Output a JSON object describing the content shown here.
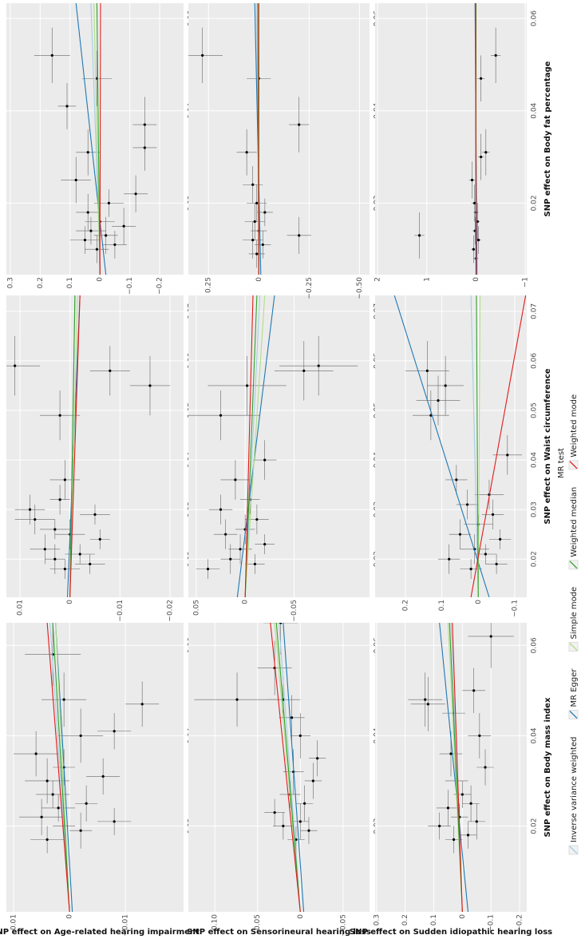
{
  "legend": {
    "title": "MR test",
    "items": [
      {
        "name": "Inverse variance weighted",
        "color": "#a6cee3"
      },
      {
        "name": "MR Egger",
        "color": "#1f78b4"
      },
      {
        "name": "Simple mode",
        "color": "#b2df8a"
      },
      {
        "name": "Weighted median",
        "color": "#33a02c"
      },
      {
        "name": "Weighted mode",
        "color": "#e31a1c"
      }
    ]
  },
  "chart_data": [
    {
      "type": "scatter",
      "y_label": "SNP effect on Age-related hearing impairment",
      "xlim": [
        0.001,
        0.065
      ],
      "xticks": [
        0.02,
        0.04,
        0.06
      ],
      "ylim": [
        -0.0204,
        0.0113
      ],
      "yticks": [
        {
          "value": -0.01,
          "label": "−0.01"
        },
        0,
        0.01
      ],
      "points": {
        "x": [
          0.017,
          0.019,
          0.02,
          0.021,
          0.022,
          0.024,
          0.025,
          0.027,
          0.03,
          0.031,
          0.033,
          0.036,
          0.04,
          0.041,
          0.047,
          0.048,
          0.058
        ],
        "y": [
          0.004,
          -0.002,
          0.001,
          -0.008,
          0.005,
          0.002,
          -0.003,
          0.003,
          0.004,
          -0.006,
          0.001,
          0.006,
          -0.002,
          -0.008,
          -0.013,
          0.001,
          0.003
        ],
        "xerr": [
          0.003,
          0.004,
          0.003,
          0.003,
          0.004,
          0.003,
          0.004,
          0.003,
          0.005,
          0.004,
          0.004,
          0.005,
          0.006,
          0.004,
          0.005,
          0.006,
          0.007
        ],
        "yerr": [
          0.003,
          0.002,
          0.002,
          0.003,
          0.004,
          0.003,
          0.002,
          0.003,
          0.004,
          0.003,
          0.002,
          0.004,
          0.004,
          0.003,
          0.003,
          0.004,
          0.005
        ]
      },
      "lines": [
        {
          "values": [
            0,
            0.0035
          ]
        },
        {
          "values": [
            -0.0005,
            0.0025
          ]
        },
        {
          "values": [
            0,
            0.0025
          ]
        },
        {
          "values": [
            0,
            0.003
          ]
        },
        {
          "values": [
            0,
            0.004
          ]
        }
      ]
    },
    {
      "type": "scatter",
      "xlim": [
        0.0123,
        0.0732
      ],
      "xticks": [
        0.02,
        0.03,
        0.04,
        0.05,
        0.06,
        0.07
      ],
      "ylim": [
        -0.0227,
        0.0127
      ],
      "yticks": [
        {
          "value": -0.02,
          "label": "−0.02"
        },
        {
          "value": -0.01,
          "label": "−0.01"
        },
        0,
        0.01
      ],
      "points": {
        "x": [
          0.018,
          0.019,
          0.02,
          0.021,
          0.022,
          0.024,
          0.025,
          0.026,
          0.028,
          0.029,
          0.03,
          0.032,
          0.036,
          0.049,
          0.055,
          0.058,
          0.059
        ],
        "y": [
          0.001,
          -0.004,
          0.003,
          -0.002,
          0.005,
          -0.006,
          0,
          0.003,
          0.007,
          -0.005,
          0.008,
          0.002,
          0.001,
          0.002,
          -0.016,
          -0.008,
          0.011
        ],
        "xerr": [
          0.002,
          0.002,
          0.003,
          0.002,
          0.003,
          0.002,
          0.003,
          0.002,
          0.003,
          0.002,
          0.003,
          0.003,
          0.004,
          0.005,
          0.006,
          0.005,
          0.006
        ],
        "yerr": [
          0.003,
          0.003,
          0.002,
          0.003,
          0.003,
          0.002,
          0.003,
          0.003,
          0.004,
          0.003,
          0.003,
          0.002,
          0.003,
          0.004,
          0.004,
          0.004,
          0.005
        ]
      },
      "lines": [
        {
          "values": [
            0,
            -0.001
          ]
        },
        {
          "values": [
            0.0005,
            -0.002
          ]
        },
        {
          "values": [
            0,
            -0.0015
          ]
        },
        {
          "values": [
            0,
            -0.001
          ]
        },
        {
          "values": [
            0,
            -0.002
          ]
        }
      ]
    },
    {
      "type": "scatter",
      "xlim": [
        0.0045,
        0.0633
      ],
      "xticks": [
        0.02,
        0.04,
        0.06
      ],
      "ylim": [
        -0.28,
        0.313
      ],
      "yticks": [
        {
          "value": -0.2,
          "label": "−0.2"
        },
        {
          "value": -0.1,
          "label": "−0.1"
        },
        0,
        0.1,
        0.2,
        0.3
      ],
      "points": {
        "x": [
          0.01,
          0.011,
          0.012,
          0.013,
          0.014,
          0.015,
          0.016,
          0.018,
          0.02,
          0.022,
          0.025,
          0.031,
          0.032,
          0.037,
          0.041,
          0.047,
          0.052
        ],
        "y": [
          0.01,
          -0.05,
          0.05,
          -0.02,
          0.03,
          -0.08,
          0,
          0.04,
          -0.03,
          -0.12,
          0.08,
          0.04,
          -0.15,
          -0.15,
          0.11,
          0.01,
          0.16
        ],
        "xerr": [
          0.003,
          0.003,
          0.003,
          0.004,
          0.003,
          0.004,
          0.003,
          0.004,
          0.003,
          0.004,
          0.005,
          0.005,
          0.005,
          0.006,
          0.005,
          0.006,
          0.006
        ],
        "yerr": [
          0.04,
          0.04,
          0.05,
          0.04,
          0.05,
          0.04,
          0.05,
          0.04,
          0.05,
          0.04,
          0.05,
          0.04,
          0.04,
          0.04,
          0.03,
          0.05,
          0.06
        ]
      },
      "lines": [
        {
          "values": [
            -0.002,
            0.03
          ]
        },
        {
          "values": [
            -0.02,
            0.08
          ]
        },
        {
          "values": [
            0,
            0.02
          ]
        },
        {
          "values": [
            0,
            0.01
          ]
        },
        {
          "values": [
            0,
            -0.002
          ]
        }
      ]
    },
    {
      "type": "scatter",
      "y_label": "SNP effect on Sensorineural hearing loss",
      "xlim": [
        0.001,
        0.065
      ],
      "xticks": [
        0.02,
        0.04,
        0.06
      ],
      "ylim": [
        -0.081,
        0.131
      ],
      "yticks": [
        {
          "value": -0.05,
          "label": "−0.05"
        },
        0,
        0.05,
        {
          "value": 0.1,
          "label": "0.10"
        }
      ],
      "points": {
        "x": [
          0.017,
          0.019,
          0.02,
          0.021,
          0.023,
          0.025,
          0.027,
          0.03,
          0.032,
          0.035,
          0.04,
          0.044,
          0.048,
          0.048,
          0.055,
          0.065
        ],
        "y": [
          0.005,
          -0.01,
          0.02,
          0,
          0.03,
          -0.005,
          0.012,
          -0.015,
          0.008,
          -0.02,
          0,
          0.01,
          0.074,
          0.02,
          0.03,
          0.023
        ],
        "xerr": [
          0.003,
          0.003,
          0.003,
          0.004,
          0.003,
          0.004,
          0.003,
          0.004,
          0.005,
          0.004,
          0.005,
          0.005,
          0.006,
          0.005,
          0.006,
          0.007
        ],
        "yerr": [
          0.01,
          0.01,
          0.012,
          0.01,
          0.012,
          0.01,
          0.012,
          0.01,
          0.012,
          0.01,
          0.012,
          0.015,
          0.05,
          0.02,
          0.02,
          0.02
        ]
      },
      "lines": [
        {
          "values": [
            0,
            0.025
          ]
        },
        {
          "values": [
            -0.004,
            0.02
          ]
        },
        {
          "values": [
            0,
            0.03
          ]
        },
        {
          "values": [
            0,
            0.028
          ]
        },
        {
          "values": [
            0,
            0.035
          ]
        }
      ]
    },
    {
      "type": "scatter",
      "xlim": [
        0.0123,
        0.0732
      ],
      "xticks": [
        0.02,
        0.03,
        0.04,
        0.05,
        0.06,
        0.07
      ],
      "ylim": [
        -0.127,
        0.058
      ],
      "yticks": [
        {
          "value": -0.05,
          "label": "−0.05"
        },
        0,
        0.05
      ],
      "points": {
        "x": [
          0.018,
          0.019,
          0.02,
          0.022,
          0.023,
          0.025,
          0.026,
          0.028,
          0.03,
          0.032,
          0.036,
          0.04,
          0.049,
          0.055,
          0.058,
          0.059
        ],
        "y": [
          0.038,
          -0.01,
          0.015,
          0.005,
          -0.02,
          0.02,
          0,
          -0.012,
          0.025,
          -0.005,
          0.01,
          -0.02,
          0.025,
          -0.002,
          -0.06,
          -0.075
        ],
        "xerr": [
          0.002,
          0.002,
          0.003,
          0.003,
          0.002,
          0.003,
          0.003,
          0.003,
          0.003,
          0.003,
          0.004,
          0.004,
          0.005,
          0.006,
          0.006,
          0.006
        ],
        "yerr": [
          0.012,
          0.01,
          0.01,
          0.012,
          0.01,
          0.012,
          0.01,
          0.012,
          0.012,
          0.01,
          0.015,
          0.012,
          0.04,
          0.04,
          0.03,
          0.04
        ]
      },
      "lines": [
        {
          "values": [
            0,
            -0.015
          ]
        },
        {
          "values": [
            0.008,
            -0.03
          ]
        },
        {
          "values": [
            0,
            -0.02
          ]
        },
        {
          "values": [
            0,
            -0.012
          ]
        },
        {
          "values": [
            0,
            -0.008
          ]
        }
      ]
    },
    {
      "type": "scatter",
      "xlim": [
        0.0045,
        0.0633
      ],
      "xticks": [
        0.02,
        0.04,
        0.06
      ],
      "ylim": [
        -0.55,
        0.35
      ],
      "yticks": [
        {
          "value": -0.5,
          "label": "−0.50"
        },
        {
          "value": -0.25,
          "label": "−0.25"
        },
        0,
        0.25
      ],
      "points": {
        "x": [
          0.009,
          0.011,
          0.012,
          0.013,
          0.014,
          0.016,
          0.018,
          0.02,
          0.024,
          0.031,
          0.037,
          0.047,
          0.052
        ],
        "y": [
          0.01,
          -0.02,
          0.03,
          -0.2,
          0,
          0.02,
          -0.03,
          0.01,
          0.03,
          0.06,
          -0.2,
          0,
          0.28
        ],
        "xerr": [
          0.003,
          0.003,
          0.004,
          0.004,
          0.003,
          0.004,
          0.003,
          0.004,
          0.004,
          0.005,
          0.006,
          0.005,
          0.006
        ],
        "yerr": [
          0.04,
          0.04,
          0.05,
          0.06,
          0.04,
          0.05,
          0.04,
          0.05,
          0.05,
          0.05,
          0.05,
          0.06,
          0.1
        ]
      },
      "lines": [
        {
          "values": [
            0,
            0.01
          ]
        },
        {
          "values": [
            -0.01,
            0.02
          ]
        },
        {
          "values": [
            0,
            0.005
          ]
        },
        {
          "values": [
            0,
            0.005
          ]
        },
        {
          "values": [
            0,
            0
          ]
        }
      ]
    },
    {
      "type": "scatter",
      "y_label": "SNP effect on Sudden idiopathic hearing loss",
      "x_label": "SNP effect on Body mass index",
      "xlim": [
        0.001,
        0.065
      ],
      "xticks": [
        0.02,
        0.04,
        0.06
      ],
      "ylim": [
        -0.225,
        0.305
      ],
      "yticks": [
        {
          "value": -0.2,
          "label": "−0.2"
        },
        {
          "value": -0.1,
          "label": "−0.1"
        },
        0,
        0.1,
        0.2,
        0.3
      ],
      "points": {
        "x": [
          0.017,
          0.018,
          0.02,
          0.021,
          0.022,
          0.024,
          0.025,
          0.027,
          0.03,
          0.033,
          0.036,
          0.04,
          0.045,
          0.047,
          0.048,
          0.05,
          0.062
        ],
        "y": [
          0.03,
          -0.02,
          0.08,
          -0.05,
          0.01,
          0.05,
          -0.03,
          0,
          0.02,
          -0.08,
          0.04,
          -0.06,
          0.03,
          0.12,
          0.13,
          -0.04,
          -0.1
        ],
        "xerr": [
          0.003,
          0.003,
          0.003,
          0.004,
          0.003,
          0.004,
          0.004,
          0.003,
          0.004,
          0.004,
          0.005,
          0.005,
          0.005,
          0.006,
          0.006,
          0.005,
          0.007
        ],
        "yerr": [
          0.03,
          0.03,
          0.04,
          0.03,
          0.03,
          0.04,
          0.03,
          0.03,
          0.04,
          0.03,
          0.04,
          0.04,
          0.04,
          0.06,
          0.06,
          0.04,
          0.08
        ]
      },
      "lines": [
        {
          "values": [
            0,
            0.04
          ]
        },
        {
          "values": [
            -0.02,
            0.08
          ]
        },
        {
          "values": [
            0,
            0.05
          ]
        },
        {
          "values": [
            0,
            0.045
          ]
        },
        {
          "values": [
            0,
            0.035
          ]
        }
      ]
    },
    {
      "type": "scatter",
      "x_label": "SNP effect on Waist circumference",
      "xlim": [
        0.0123,
        0.0732
      ],
      "xticks": [
        0.02,
        0.03,
        0.04,
        0.05,
        0.06,
        0.07
      ],
      "ylim": [
        -0.133,
        0.283
      ],
      "yticks": [
        {
          "value": -0.1,
          "label": "−0.1"
        },
        0,
        0.1,
        0.2
      ],
      "points": {
        "x": [
          0.018,
          0.019,
          0.02,
          0.021,
          0.022,
          0.024,
          0.025,
          0.027,
          0.029,
          0.031,
          0.033,
          0.036,
          0.041,
          0.049,
          0.052,
          0.055,
          0.058
        ],
        "y": [
          0.02,
          -0.05,
          0.08,
          -0.02,
          0.01,
          -0.06,
          0.05,
          0,
          -0.04,
          0.03,
          -0.03,
          0.06,
          -0.08,
          0.13,
          0.11,
          0.09,
          0.14
        ],
        "xerr": [
          0.002,
          0.002,
          0.003,
          0.002,
          0.003,
          0.002,
          0.003,
          0.002,
          0.003,
          0.003,
          0.003,
          0.003,
          0.004,
          0.005,
          0.005,
          0.006,
          0.006
        ],
        "yerr": [
          0.03,
          0.03,
          0.03,
          0.03,
          0.04,
          0.03,
          0.03,
          0.04,
          0.03,
          0.03,
          0.04,
          0.03,
          0.04,
          0.05,
          0.06,
          0.05,
          0.06
        ]
      },
      "lines": [
        {
          "values": [
            0,
            0.02
          ]
        },
        {
          "values": [
            -0.03,
            0.23
          ]
        },
        {
          "values": [
            0,
            -0.005
          ]
        },
        {
          "values": [
            0,
            0.005
          ]
        },
        {
          "values": [
            0.02,
            -0.13
          ]
        }
      ]
    },
    {
      "type": "scatter",
      "x_label": "SNP effect on Body fat percentage",
      "xlim": [
        0.0045,
        0.0633
      ],
      "xticks": [
        0.02,
        0.04,
        0.06
      ],
      "ylim": [
        -1.03,
        2.05
      ],
      "yticks": [
        {
          "value": -1,
          "label": "−1"
        },
        0,
        1,
        2
      ],
      "points": {
        "x": [
          0.008,
          0.01,
          0.012,
          0.013,
          0.014,
          0.016,
          0.018,
          0.02,
          0.025,
          0.03,
          0.031,
          0.047,
          0.052
        ],
        "y": [
          0,
          0.05,
          -0.05,
          1.15,
          0.02,
          -0.03,
          0,
          0.03,
          0.08,
          -0.1,
          -0.2,
          -0.1,
          -0.4
        ],
        "xerr": [
          0.003,
          0.003,
          0.003,
          0.005,
          0.003,
          0.004,
          0.003,
          0.004,
          0.004,
          0.005,
          0.005,
          0.005,
          0.006
        ],
        "yerr": [
          0.05,
          0.05,
          0.05,
          0.1,
          0.05,
          0.05,
          0.05,
          0.06,
          0.06,
          0.06,
          0.08,
          0.08,
          0.1
        ]
      },
      "lines": [
        {
          "values": [
            0,
            0
          ]
        },
        {
          "values": [
            -0.02,
            0.02
          ]
        },
        {
          "values": [
            0,
            0.01
          ]
        },
        {
          "values": [
            0,
            0
          ]
        },
        {
          "values": [
            0,
            0.01
          ]
        }
      ]
    }
  ]
}
